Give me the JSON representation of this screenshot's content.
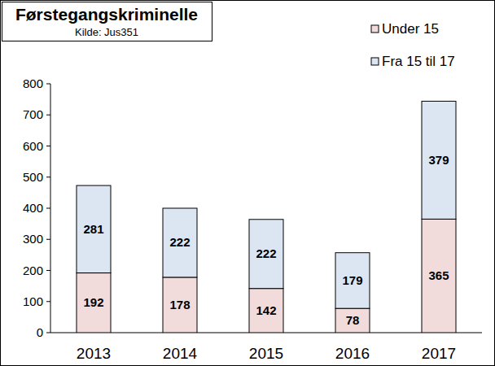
{
  "chart_data": {
    "type": "bar",
    "title": "Førstegangskriminelle",
    "subtitle": "Kilde: Jus351",
    "categories": [
      "2013",
      "2014",
      "2015",
      "2016",
      "2017"
    ],
    "series": [
      {
        "name": "Under 15",
        "color": "#f2dcdb",
        "values": [
          192,
          178,
          142,
          78,
          365
        ]
      },
      {
        "name": "Fra 15 til 17",
        "color": "#dce6f2",
        "values": [
          281,
          222,
          222,
          179,
          379
        ]
      }
    ],
    "ylim": [
      0,
      800
    ],
    "yticks": [
      0,
      100,
      200,
      300,
      400,
      500,
      600,
      700,
      800
    ],
    "stacked": true,
    "data_labels": true,
    "grid": false,
    "legend": "top-right"
  }
}
